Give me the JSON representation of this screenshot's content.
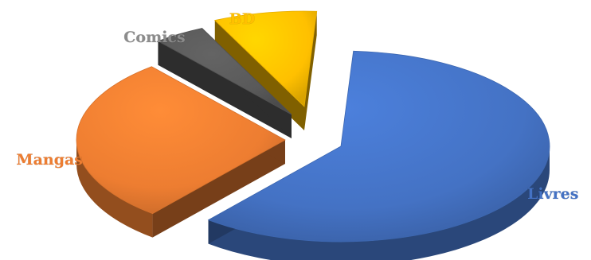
{
  "chart_data": {
    "type": "pie",
    "style": "3d-exploded",
    "title": "",
    "legend": "none",
    "categories": [
      "Livres",
      "Mangas",
      "Comics",
      "BD"
    ],
    "values": [
      60,
      28,
      4,
      8
    ],
    "colors": {
      "Livres": "#4472c4",
      "Mangas": "#ed7d31",
      "Comics": "#595959",
      "BD": "#ffc000"
    },
    "label_colors": {
      "Livres": "#4472c4",
      "Mangas": "#ed7d31",
      "Comics": "#8c8c8c",
      "BD": "#ffc000"
    }
  }
}
